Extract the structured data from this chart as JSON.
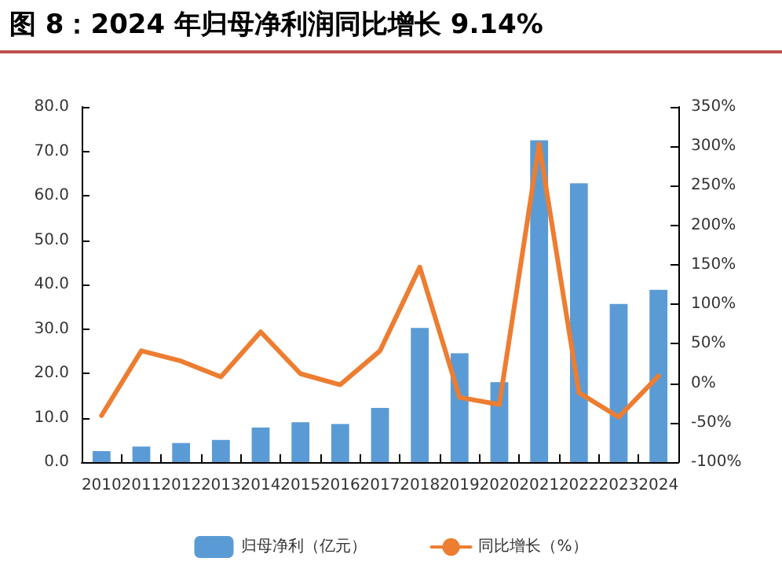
{
  "chart_data": {
    "type": "bar",
    "title": "图 8：2024 年归母净利润同比增长 9.14%",
    "categories": [
      "2010",
      "2011",
      "2012",
      "2013",
      "2014",
      "2015",
      "2016",
      "2017",
      "2018",
      "2019",
      "2020",
      "2021",
      "2022",
      "2023",
      "2024"
    ],
    "series": [
      {
        "name": "归母净利（亿元）",
        "color": "#5b9bd5",
        "values": [
          2.5,
          3.5,
          4.3,
          5.0,
          7.8,
          9.0,
          8.6,
          12.2,
          30.2,
          24.5,
          18.0,
          72.5,
          62.8,
          35.6,
          38.8
        ]
      },
      {
        "name": "同比增长（%）",
        "type": "line",
        "axis": "y2",
        "color": "#ed7d31",
        "values": [
          -41,
          41,
          28,
          8,
          65,
          12,
          -2,
          41,
          147,
          -18,
          -27,
          303,
          -12,
          -43,
          9.14
        ]
      }
    ],
    "ylim": [
      0,
      80
    ],
    "yticks": [
      {
        "value": 0,
        "label": "0.0"
      },
      {
        "value": 10,
        "label": "10.0"
      },
      {
        "value": 20,
        "label": "20.0"
      },
      {
        "value": 30,
        "label": "30.0"
      },
      {
        "value": 40,
        "label": "40.0"
      },
      {
        "value": 50,
        "label": "50.0"
      },
      {
        "value": 60,
        "label": "60.0"
      },
      {
        "value": 70,
        "label": "70.0"
      },
      {
        "value": 80,
        "label": "80.0"
      }
    ],
    "y2lim": [
      -100,
      350
    ],
    "y2ticks": [
      {
        "value": -100,
        "label": "-100%"
      },
      {
        "value": -50,
        "label": "-50%"
      },
      {
        "value": 0,
        "label": "0%"
      },
      {
        "value": 50,
        "label": "50%"
      },
      {
        "value": 100,
        "label": "100%"
      },
      {
        "value": 150,
        "label": "150%"
      },
      {
        "value": 200,
        "label": "200%"
      },
      {
        "value": 250,
        "label": "250%"
      },
      {
        "value": 300,
        "label": "300%"
      },
      {
        "value": 350,
        "label": "350%"
      }
    ],
    "grid": false,
    "legend": "bottom",
    "marker": "none",
    "line_style": "solid"
  }
}
